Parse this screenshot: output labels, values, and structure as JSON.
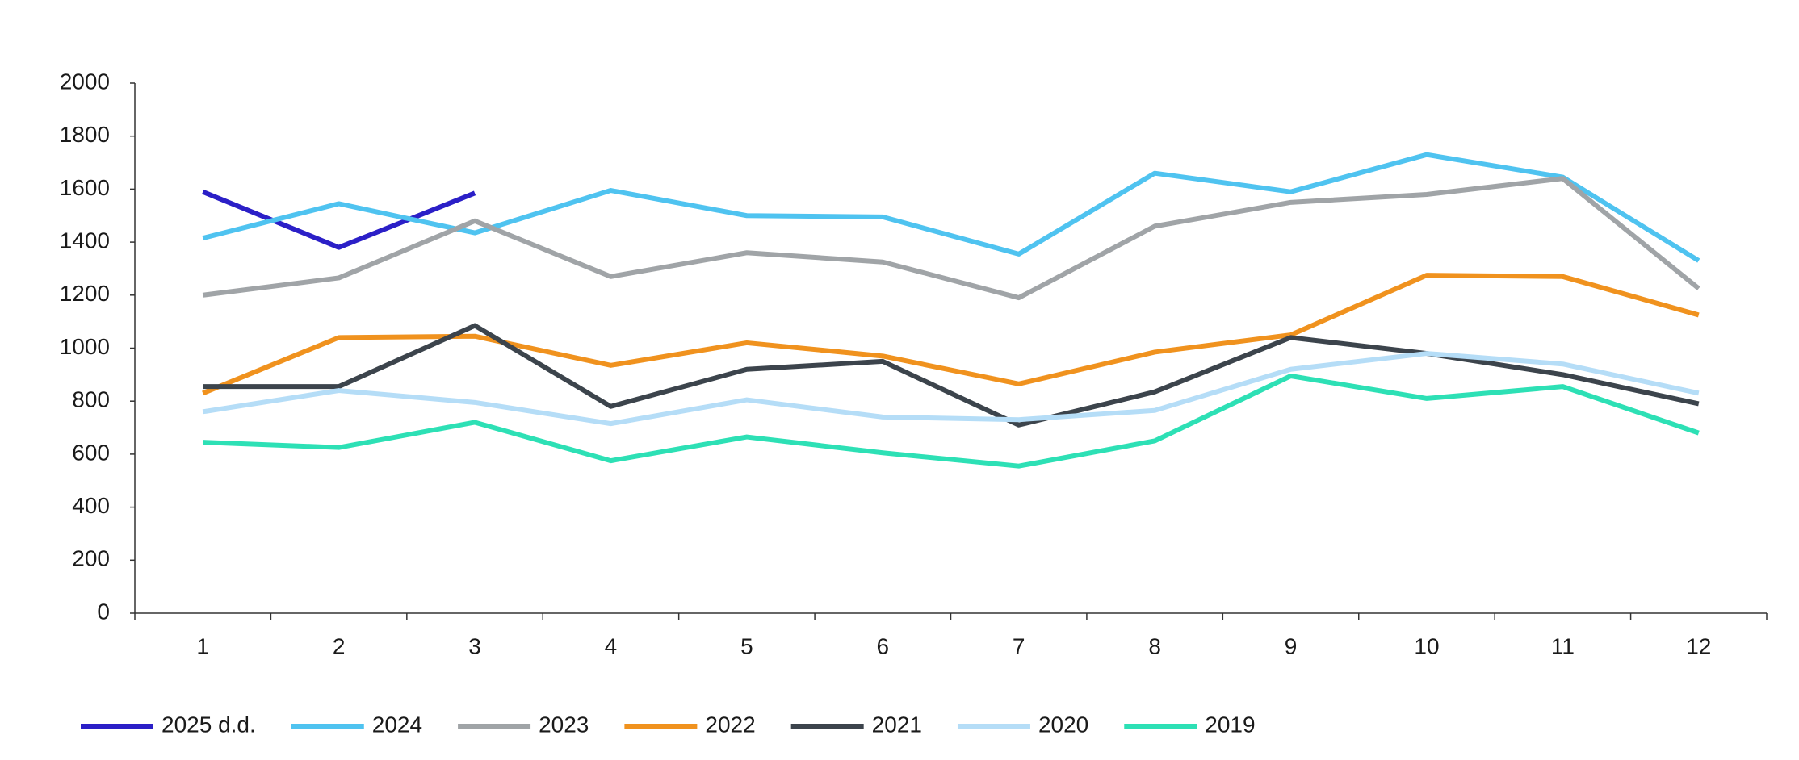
{
  "chart_data": {
    "type": "line",
    "categories": [
      "1",
      "2",
      "3",
      "4",
      "5",
      "6",
      "7",
      "8",
      "9",
      "10",
      "11",
      "12"
    ],
    "series": [
      {
        "name": "2025 d.d.",
        "color": "#2b1fc7",
        "values": [
          1590,
          1380,
          1585,
          null,
          null,
          null,
          null,
          null,
          null,
          null,
          null,
          null
        ]
      },
      {
        "name": "2024",
        "color": "#4fc3f0",
        "values": [
          1415,
          1545,
          1435,
          1595,
          1500,
          1495,
          1355,
          1660,
          1590,
          1730,
          1645,
          1330
        ]
      },
      {
        "name": "2023",
        "color": "#a0a4a7",
        "values": [
          1200,
          1265,
          1480,
          1270,
          1360,
          1325,
          1190,
          1460,
          1550,
          1580,
          1640,
          1225
        ]
      },
      {
        "name": "2022",
        "color": "#f0921e",
        "values": [
          830,
          1040,
          1045,
          935,
          1020,
          970,
          865,
          985,
          1050,
          1275,
          1270,
          1125
        ]
      },
      {
        "name": "2021",
        "color": "#3c444c",
        "values": [
          855,
          855,
          1085,
          780,
          920,
          950,
          710,
          835,
          1040,
          980,
          900,
          790
        ]
      },
      {
        "name": "2020",
        "color": "#b5ddf7",
        "values": [
          760,
          840,
          795,
          715,
          805,
          740,
          730,
          765,
          920,
          980,
          940,
          830
        ]
      },
      {
        "name": "2019",
        "color": "#2de0b5",
        "values": [
          645,
          625,
          720,
          575,
          665,
          605,
          555,
          650,
          895,
          810,
          855,
          680
        ]
      }
    ],
    "ylim": [
      0,
      2000
    ],
    "yticks": [
      0,
      200,
      400,
      600,
      800,
      1000,
      1200,
      1400,
      1600,
      1800,
      2000
    ],
    "grid": false,
    "legend": "bottom"
  }
}
